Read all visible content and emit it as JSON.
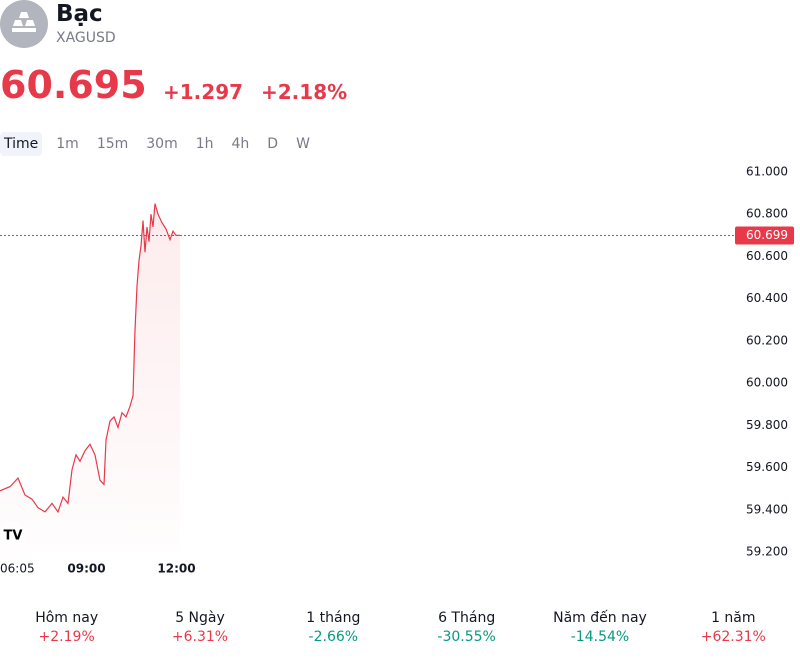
{
  "header": {
    "title": "Bạc",
    "symbol": "XAGUSD",
    "price": "60.695",
    "change": "+1.297",
    "change_percent": "+2.18%"
  },
  "tabs": [
    "Time",
    "1m",
    "15m",
    "30m",
    "1h",
    "4h",
    "D",
    "W"
  ],
  "chart_data": {
    "type": "line",
    "series": [
      {
        "name": "XAGUSD",
        "color": "#e8394a",
        "x": [
          6.083,
          6.417,
          6.683,
          6.917,
          7.15,
          7.35,
          7.583,
          7.817,
          8.017,
          8.183,
          8.35,
          8.483,
          8.617,
          8.75,
          8.917,
          9.083,
          9.25,
          9.417,
          9.55,
          9.617,
          9.75,
          9.883,
          10.017,
          10.15,
          10.283,
          10.417,
          10.517,
          10.583,
          10.65,
          10.717,
          10.783,
          10.85,
          10.917,
          10.983,
          11.05,
          11.117,
          11.183,
          11.25,
          11.35,
          11.483,
          11.617,
          11.75,
          11.85,
          11.95,
          12.083
        ],
        "values": [
          59.49,
          59.51,
          59.55,
          59.47,
          59.45,
          59.41,
          59.39,
          59.43,
          59.39,
          59.46,
          59.43,
          59.59,
          59.66,
          59.63,
          59.68,
          59.71,
          59.66,
          59.54,
          59.52,
          59.73,
          59.82,
          59.84,
          59.79,
          59.86,
          59.84,
          59.89,
          59.94,
          60.25,
          60.46,
          60.58,
          60.65,
          60.77,
          60.62,
          60.74,
          60.67,
          60.8,
          60.74,
          60.85,
          60.8,
          60.76,
          60.73,
          60.68,
          60.72,
          60.7,
          60.7
        ]
      }
    ],
    "xlim": [
      6.0833,
      30.5833
    ],
    "xticks": [
      {
        "value": 6.0833,
        "label": "06:05"
      },
      {
        "value": 9,
        "label": "09:00"
      },
      {
        "value": 12,
        "label": "12:00"
      }
    ],
    "ylim": [
      59.2,
      61.0
    ],
    "yticks": [
      {
        "value": 61,
        "label": "61.000"
      },
      {
        "value": 60.8,
        "label": "60.800"
      },
      {
        "value": 60.6,
        "label": "60.600"
      },
      {
        "value": 60.4,
        "label": "60.400"
      },
      {
        "value": 60.2,
        "label": "60.200"
      },
      {
        "value": 60,
        "label": "60.000"
      },
      {
        "value": 59.8,
        "label": "59.800"
      },
      {
        "value": 59.6,
        "label": "59.600"
      },
      {
        "value": 59.4,
        "label": "59.400"
      },
      {
        "value": 59.2,
        "label": "59.200"
      }
    ],
    "last_price": 60.699
  },
  "performance": [
    {
      "label": "Hôm nay",
      "value": "+2.19%",
      "color": "#e8394a"
    },
    {
      "label": "5 Ngày",
      "value": "+6.31%",
      "color": "#e8394a"
    },
    {
      "label": "1 tháng",
      "value": "-2.66%",
      "color": "#089981"
    },
    {
      "label": "6 Tháng",
      "value": "-30.55%",
      "color": "#089981"
    },
    {
      "label": "Năm đến nay",
      "value": "-14.54%",
      "color": "#089981"
    },
    {
      "label": "1 năm",
      "value": "+62.31%",
      "color": "#e8394a"
    }
  ]
}
